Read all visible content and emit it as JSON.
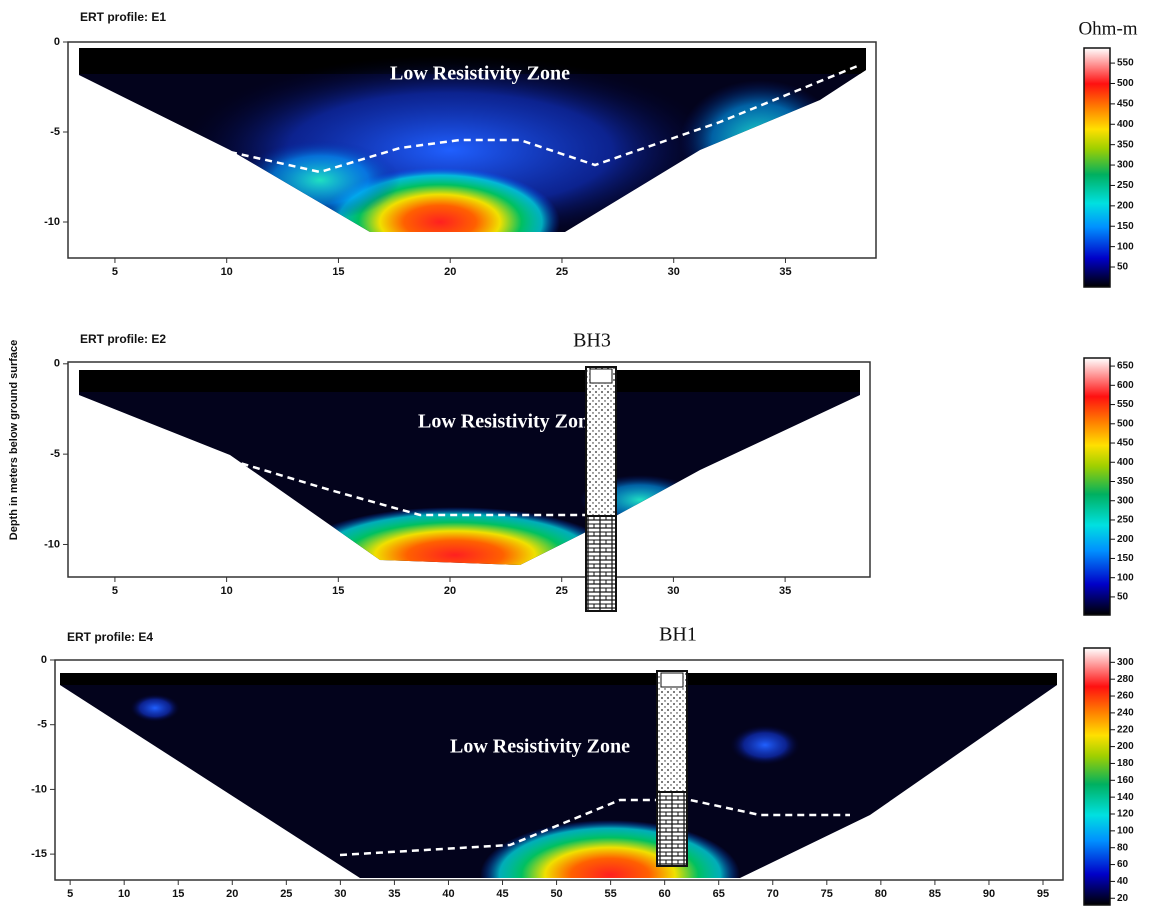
{
  "y_axis_label": "Depth in meters below ground surface",
  "colorbar_unit": "Ohm-m",
  "panels": [
    {
      "title": "ERT profile: E1",
      "annotation": "Low Resistivity Zone",
      "xlim": [
        2.9,
        39.05
      ],
      "ylim": [
        -12,
        0
      ],
      "xticks": [
        5,
        10,
        15,
        20,
        25,
        30,
        35
      ],
      "yticks": [
        0,
        -5,
        -10
      ],
      "colorbar": {
        "lim": [
          1,
          587
        ],
        "ticks": [
          50,
          100,
          150,
          200,
          250,
          300,
          350,
          400,
          450,
          500,
          550
        ]
      }
    },
    {
      "title": "ERT profile: E2",
      "annotation": "Low Resistivity Zone",
      "borehole": "BH3",
      "xlim": [
        2.9,
        38.8
      ],
      "ylim": [
        -11.8,
        0.1
      ],
      "xticks": [
        5,
        10,
        15,
        20,
        25,
        30,
        35
      ],
      "yticks": [
        0,
        -5,
        -10
      ],
      "colorbar": {
        "lim": [
          3,
          671
        ],
        "ticks": [
          50,
          100,
          150,
          200,
          250,
          300,
          350,
          400,
          450,
          500,
          550,
          600,
          650
        ]
      }
    },
    {
      "title": "ERT profile: E4",
      "annotation": "Low Resistivity Zone",
      "borehole": "BH1",
      "xlim": [
        3.6,
        96.85
      ],
      "ylim": [
        -17,
        0
      ],
      "xticks": [
        5,
        10,
        15,
        20,
        25,
        30,
        35,
        40,
        45,
        50,
        55,
        60,
        65,
        70,
        75,
        80,
        85,
        90,
        95
      ],
      "yticks": [
        0,
        -5,
        -10,
        -15
      ],
      "colorbar": {
        "lim": [
          12,
          317
        ],
        "ticks": [
          20,
          40,
          60,
          80,
          100,
          120,
          140,
          160,
          180,
          200,
          220,
          240,
          260,
          280,
          300
        ]
      }
    }
  ]
}
